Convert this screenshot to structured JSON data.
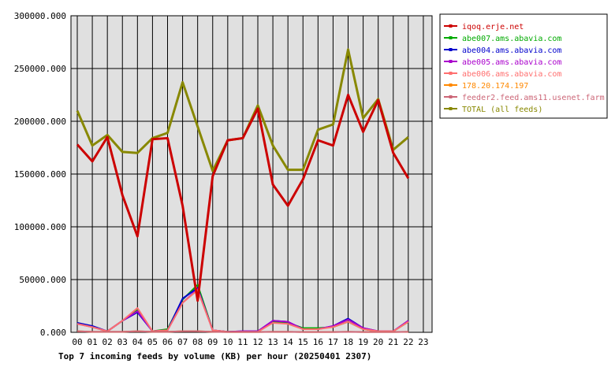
{
  "chart_data": {
    "type": "line",
    "title": "Top 7 incoming feeds by volume (KB) per hour (20250401 2307)",
    "categories": [
      "00",
      "01",
      "02",
      "03",
      "04",
      "05",
      "06",
      "07",
      "08",
      "09",
      "10",
      "11",
      "12",
      "13",
      "14",
      "15",
      "16",
      "17",
      "18",
      "19",
      "20",
      "21",
      "22",
      "23"
    ],
    "y_ticks": [
      "0.000",
      "50000.000",
      "100000.000",
      "150000.000",
      "200000.000",
      "250000.000",
      "300000.000"
    ],
    "ylim": [
      0,
      300000
    ],
    "grid": true,
    "legend_position": "right",
    "series": [
      {
        "name": "iqoq.erje.net",
        "color": "#cc0000",
        "values": [
          178000,
          162000,
          185000,
          130000,
          91000,
          183000,
          184000,
          120000,
          30000,
          148000,
          182000,
          184000,
          212000,
          140000,
          120000,
          145000,
          182000,
          177000,
          225000,
          190000,
          220000,
          170000,
          146000,
          null
        ]
      },
      {
        "name": "abe007.ams.abavia.com",
        "color": "#00aa00",
        "values": [
          9000,
          5000,
          1000,
          11000,
          21000,
          1000,
          3000,
          31000,
          45000,
          2000,
          500,
          500,
          500,
          10000,
          9000,
          4000,
          4000,
          5000,
          10000,
          3000,
          1000,
          1000,
          10000,
          null
        ]
      },
      {
        "name": "abe004.ams.abavia.com",
        "color": "#0000cc",
        "values": [
          9000,
          6000,
          1000,
          11000,
          19000,
          1000,
          2000,
          32000,
          42000,
          2000,
          500,
          1000,
          1000,
          11000,
          10000,
          3000,
          3000,
          6000,
          13000,
          4000,
          1000,
          1000,
          11000,
          null
        ]
      },
      {
        "name": "abe005.ams.abavia.com",
        "color": "#aa00cc",
        "values": [
          8000,
          5000,
          1000,
          11000,
          20000,
          1000,
          2000,
          28000,
          41000,
          2000,
          500,
          1000,
          1000,
          11000,
          10000,
          3000,
          3000,
          6000,
          12000,
          4000,
          1000,
          1000,
          11000,
          null
        ]
      },
      {
        "name": "abe006.ams.abavia.com",
        "color": "#ff6f6f",
        "values": [
          8000,
          5000,
          1000,
          11000,
          23000,
          1000,
          2000,
          28000,
          40000,
          2000,
          500,
          500,
          500,
          9000,
          8000,
          3000,
          3000,
          5000,
          10000,
          3000,
          1000,
          1000,
          10000,
          null
        ]
      },
      {
        "name": "178.20.174.197",
        "color": "#ff8800",
        "values": [
          1000,
          500,
          500,
          500,
          1000,
          500,
          500,
          1000,
          1000,
          500,
          300,
          300,
          300,
          500,
          500,
          300,
          300,
          300,
          500,
          300,
          300,
          300,
          500,
          null
        ]
      },
      {
        "name": "feeder2.feed.ams11.usenet.farm",
        "color": "#cc6677",
        "values": [
          1000,
          500,
          500,
          500,
          1000,
          500,
          500,
          1000,
          1000,
          500,
          300,
          300,
          300,
          500,
          500,
          300,
          300,
          300,
          500,
          300,
          300,
          300,
          500,
          null
        ]
      },
      {
        "name": "TOTAL (all feeds)",
        "color": "#888800",
        "values": [
          210000,
          177000,
          187000,
          171000,
          170000,
          184000,
          189000,
          237000,
          195000,
          153000,
          182000,
          184000,
          215000,
          177000,
          154000,
          154000,
          192000,
          197000,
          268000,
          203000,
          221000,
          173000,
          185000,
          null
        ]
      }
    ]
  }
}
